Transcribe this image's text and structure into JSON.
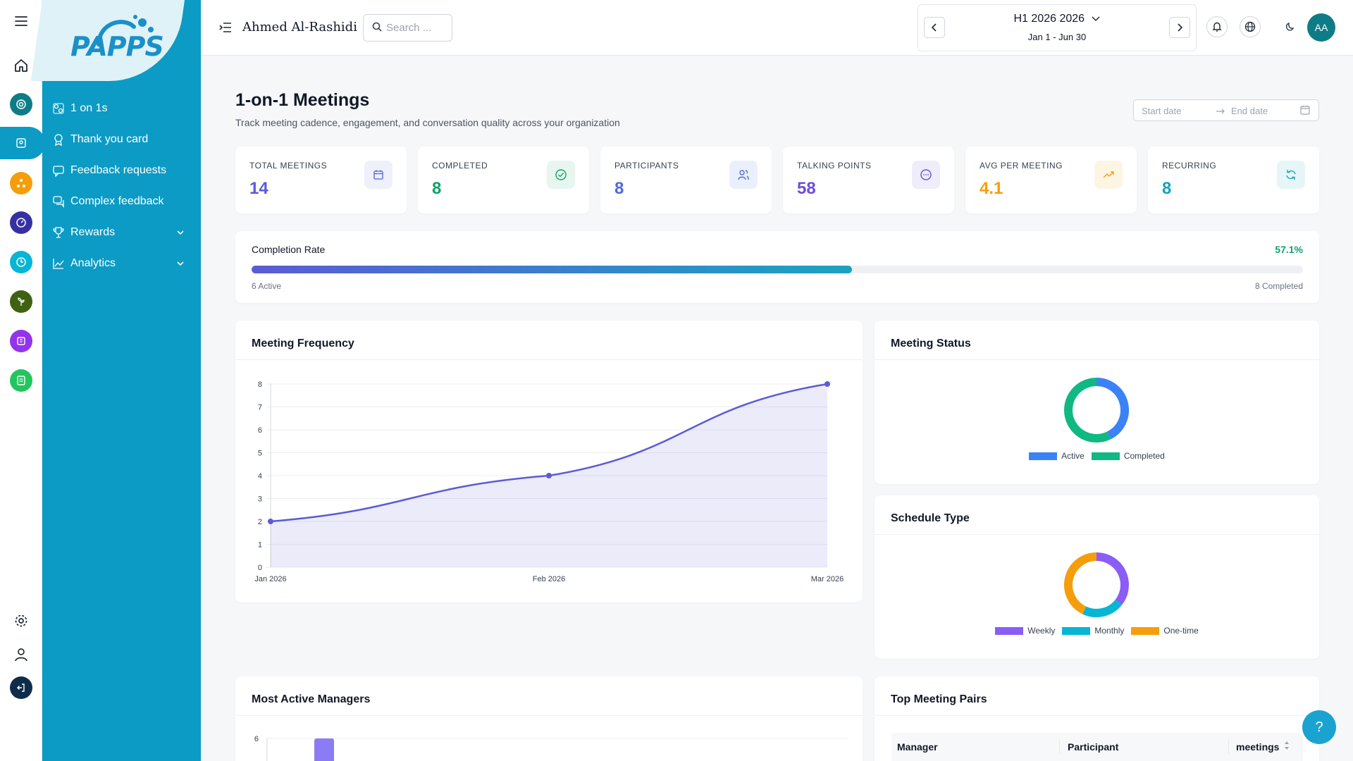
{
  "app": {
    "logo": "PAPPS"
  },
  "sidebar": {
    "items": [
      {
        "label": "1 on 1s",
        "icon": "people-icon"
      },
      {
        "label": "Thank you card",
        "icon": "award-icon"
      },
      {
        "label": "Feedback requests",
        "icon": "feedback-icon"
      },
      {
        "label": "Complex feedback",
        "icon": "chat-icon"
      },
      {
        "label": "Rewards",
        "icon": "trophy-icon"
      },
      {
        "label": "Analytics",
        "icon": "chart-line-icon"
      }
    ]
  },
  "rail": {
    "colors": [
      "#0e7c86",
      "#0b9bc4",
      "#f59e0b",
      "#3730a3",
      "#06b6d4",
      "#3f6212",
      "#9333ea",
      "#22c55e"
    ]
  },
  "header": {
    "user_name": "Ahmed Al-Rashidi",
    "search_placeholder": "Search ...",
    "period_title": "H1 2026 2026",
    "period_range": "Jan 1 - Jun 30",
    "avatar_initials": "AA"
  },
  "page": {
    "title": "1-on-1 Meetings",
    "subtitle": "Track meeting cadence, engagement, and conversation quality across your organization",
    "start_date_placeholder": "Start date",
    "end_date_placeholder": "End date"
  },
  "stats": [
    {
      "label": "TOTAL MEETINGS",
      "value": "14",
      "color": "#5b5bd6",
      "bg": "#eef0fb",
      "icon": "calendar-icon"
    },
    {
      "label": "COMPLETED",
      "value": "8",
      "color": "#10a36a",
      "bg": "#e7f6ef",
      "icon": "check-circle-icon"
    },
    {
      "label": "PARTICIPANTS",
      "value": "8",
      "color": "#4f6bd8",
      "bg": "#eaf0fb",
      "icon": "users-icon"
    },
    {
      "label": "TALKING POINTS",
      "value": "58",
      "color": "#6d4fd8",
      "bg": "#efecfb",
      "icon": "message-icon"
    },
    {
      "label": "AVG PER MEETING",
      "value": "4.1",
      "color": "#f59e0b",
      "bg": "#fdf5e4",
      "icon": "trend-up-icon"
    },
    {
      "label": "RECURRING",
      "value": "8",
      "color": "#14a3b8",
      "bg": "#e6f6f8",
      "icon": "refresh-icon"
    }
  ],
  "completion": {
    "title": "Completion Rate",
    "percent_label": "57.1%",
    "fraction": 0.571,
    "left_note": "6 Active",
    "right_note": "8 Completed"
  },
  "frequency": {
    "title": "Meeting Frequency"
  },
  "status": {
    "title": "Meeting Status"
  },
  "schedule": {
    "title": "Schedule Type"
  },
  "managers": {
    "title": "Most Active Managers"
  },
  "pairs": {
    "title": "Top Meeting Pairs",
    "columns": [
      "Manager",
      "Participant",
      "meetings"
    ]
  },
  "help_label": "?",
  "chart_data": [
    {
      "type": "area",
      "title": "Meeting Frequency",
      "x": [
        "Jan 2026",
        "Feb 2026",
        "Mar 2026"
      ],
      "values": [
        2,
        4,
        8
      ],
      "ylim": [
        0,
        8
      ],
      "yticks": [
        0,
        1,
        2,
        3,
        4,
        5,
        6,
        7,
        8
      ],
      "grid": true,
      "color": "#5b5bd6"
    },
    {
      "type": "pie",
      "title": "Meeting Status",
      "labels": [
        "Active",
        "Completed"
      ],
      "values": [
        6,
        8
      ],
      "colors": [
        "#3b82f6",
        "#10b981"
      ],
      "legend": "bottom"
    },
    {
      "type": "pie",
      "title": "Schedule Type",
      "labels": [
        "Weekly",
        "Monthly",
        "One-time"
      ],
      "values": [
        5,
        3,
        6
      ],
      "colors": [
        "#8b5cf6",
        "#06b6d4",
        "#f59e0b"
      ],
      "legend": "bottom"
    },
    {
      "type": "bar",
      "title": "Most Active Managers",
      "ylim": [
        0,
        6
      ],
      "yticks": [
        6
      ],
      "values": [
        6
      ],
      "colors": [
        "#8b7cf6"
      ]
    }
  ]
}
